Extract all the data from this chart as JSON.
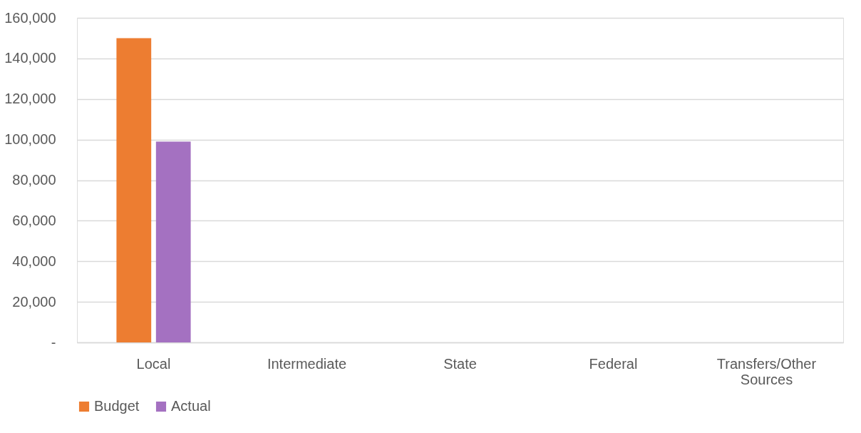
{
  "chart_data": {
    "type": "bar",
    "categories": [
      "Local",
      "Intermediate",
      "State",
      "Federal",
      "Transfers/Other Sources"
    ],
    "series": [
      {
        "name": "Budget",
        "color": "#ed7d31",
        "values": [
          150000,
          0,
          0,
          0,
          0
        ]
      },
      {
        "name": "Actual",
        "color": "#a471c1",
        "values": [
          99000,
          0,
          0,
          0,
          0
        ]
      }
    ],
    "ylim": [
      0,
      160000
    ],
    "yticks": [
      {
        "value": 0,
        "label": "-"
      },
      {
        "value": 20000,
        "label": "20,000"
      },
      {
        "value": 40000,
        "label": "40,000"
      },
      {
        "value": 60000,
        "label": "60,000"
      },
      {
        "value": 80000,
        "label": "80,000"
      },
      {
        "value": 100000,
        "label": "100,000"
      },
      {
        "value": 120000,
        "label": "120,000"
      },
      {
        "value": 140000,
        "label": "140,000"
      },
      {
        "value": 160000,
        "label": "160,000"
      }
    ],
    "grid": "y",
    "legend": "bottom"
  }
}
